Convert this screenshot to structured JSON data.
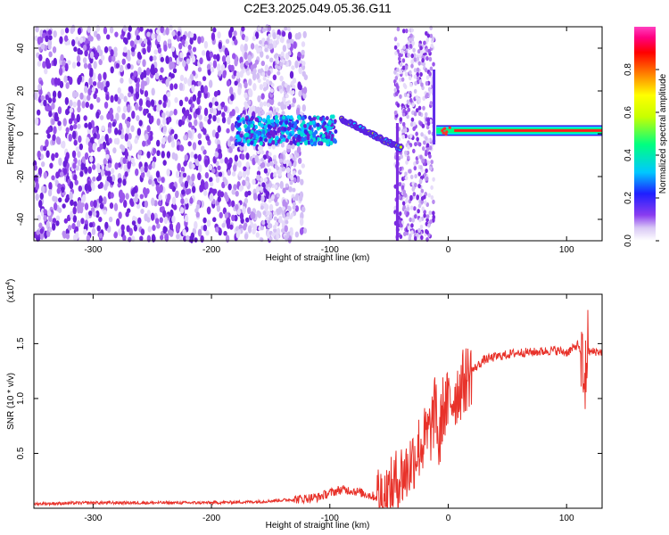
{
  "title": "C2E3.2025.049.05.36.G11",
  "colors": {
    "snr_line": "#e8322a",
    "spectrogram_noise": "#7b2be0",
    "colormap": [
      "#ffffff",
      "#d9c8f5",
      "#8a3cf0",
      "#1f1fff",
      "#00c8ff",
      "#00ff80",
      "#c8ff00",
      "#ffff00",
      "#ff8000",
      "#ff0000",
      "#ff0080",
      "#ff40c0"
    ]
  },
  "chart_data": [
    {
      "type": "heatmap",
      "name": "spectrogram",
      "xlabel": "Height of straight line (km)",
      "ylabel": "Frequency (Hz)",
      "xlim": [
        -350,
        130
      ],
      "ylim": [
        -50,
        50
      ],
      "xticks": [
        -300,
        -200,
        -100,
        0,
        100
      ],
      "yticks": [
        -40,
        -20,
        0,
        20,
        40
      ],
      "colorbar": {
        "label": "Normalized spectral amplitude",
        "range": [
          0,
          1
        ],
        "ticks": [
          0.0,
          0.2,
          0.4,
          0.6,
          0.8
        ]
      },
      "features": {
        "noise_region_km": [
          -350,
          -140
        ],
        "diffuse_cluster_km": [
          -180,
          -95
        ],
        "cluster_freq_hz": [
          -5,
          8
        ],
        "descending_track": {
          "x_km": [
            -90,
            -40
          ],
          "freq_hz": [
            7,
            -7
          ]
        },
        "noise_band_km": [
          -45,
          -12
        ],
        "carrier_line": {
          "x_km": [
            -10,
            130
          ],
          "freq_hz": 1.5
        }
      }
    },
    {
      "type": "line",
      "name": "snr",
      "xlabel": "Height of straight line (km)",
      "ylabel": "SNR (10 * v/v)",
      "multiplier_label": "(x10",
      "multiplier_exp": "4",
      "xlim": [
        -350,
        130
      ],
      "ylim": [
        0,
        1.95
      ],
      "xticks": [
        -300,
        -200,
        -100,
        0,
        100
      ],
      "yticks": [
        0.5,
        1.0,
        1.5
      ],
      "series": [
        {
          "x": [
            -350,
            -300,
            -250,
            -200,
            -160,
            -130,
            -110,
            -100,
            -90,
            -80,
            -70,
            -60,
            -50,
            -45,
            -40,
            -35,
            -30,
            -25,
            -20,
            -15,
            -12,
            -10,
            -8,
            -5,
            0,
            5,
            10,
            15,
            20,
            25,
            30,
            40,
            50,
            60,
            70,
            80,
            90,
            100,
            105,
            110,
            113,
            115,
            117,
            120,
            125,
            130
          ],
          "y": [
            0.04,
            0.05,
            0.05,
            0.05,
            0.06,
            0.08,
            0.1,
            0.14,
            0.17,
            0.16,
            0.13,
            0.1,
            0.12,
            0.22,
            0.3,
            0.33,
            0.45,
            0.55,
            0.62,
            0.7,
            0.85,
            0.95,
            0.5,
            0.9,
            0.95,
            1.02,
            1.1,
            1.18,
            1.25,
            1.3,
            1.35,
            1.38,
            1.4,
            1.42,
            1.42,
            1.43,
            1.44,
            1.42,
            1.45,
            1.5,
            1.3,
            1.0,
            1.45,
            1.42,
            1.43,
            1.42
          ]
        }
      ]
    }
  ]
}
